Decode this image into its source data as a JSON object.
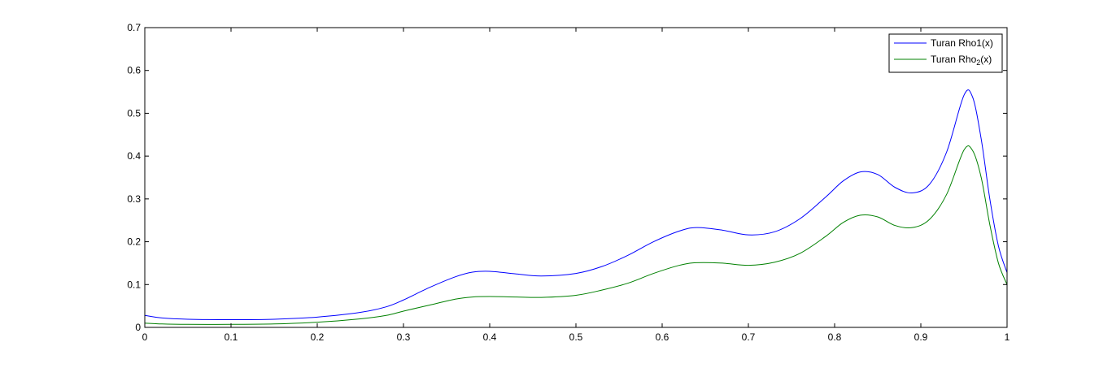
{
  "chart_data": {
    "type": "line",
    "title": "",
    "xlabel": "",
    "ylabel": "",
    "xlim": [
      0,
      1
    ],
    "ylim": [
      0,
      0.7
    ],
    "xticks": [
      0,
      0.1,
      0.2,
      0.3,
      0.4,
      0.5,
      0.6,
      0.7,
      0.8,
      0.9,
      1
    ],
    "xtick_labels": [
      "0",
      "0.1",
      "0.2",
      "0.3",
      "0.4",
      "0.5",
      "0.6",
      "0.7",
      "0.8",
      "0.9",
      "1"
    ],
    "yticks": [
      0,
      0.1,
      0.2,
      0.3,
      0.4,
      0.5,
      0.6,
      0.7
    ],
    "ytick_labels": [
      "0",
      "0.1",
      "0.2",
      "0.3",
      "0.4",
      "0.5",
      "0.6",
      "0.7"
    ],
    "grid": false,
    "legend_position": "top-right",
    "legend": {
      "rho1": "Turan Rho1(x)",
      "rho2_prefix": "Turan Rho",
      "rho2_sub": "2",
      "rho2_suffix": "(x)"
    },
    "series": [
      {
        "name": "Turan Rho1(x)",
        "color": "#0000ff",
        "points": [
          [
            0.0,
            0.028
          ],
          [
            0.02,
            0.022
          ],
          [
            0.05,
            0.019
          ],
          [
            0.1,
            0.018
          ],
          [
            0.15,
            0.019
          ],
          [
            0.2,
            0.024
          ],
          [
            0.25,
            0.035
          ],
          [
            0.28,
            0.048
          ],
          [
            0.3,
            0.064
          ],
          [
            0.33,
            0.093
          ],
          [
            0.36,
            0.118
          ],
          [
            0.38,
            0.129
          ],
          [
            0.4,
            0.131
          ],
          [
            0.43,
            0.125
          ],
          [
            0.46,
            0.12
          ],
          [
            0.5,
            0.126
          ],
          [
            0.53,
            0.142
          ],
          [
            0.56,
            0.168
          ],
          [
            0.59,
            0.2
          ],
          [
            0.62,
            0.225
          ],
          [
            0.64,
            0.233
          ],
          [
            0.67,
            0.227
          ],
          [
            0.7,
            0.216
          ],
          [
            0.73,
            0.223
          ],
          [
            0.76,
            0.254
          ],
          [
            0.79,
            0.305
          ],
          [
            0.81,
            0.342
          ],
          [
            0.83,
            0.363
          ],
          [
            0.85,
            0.357
          ],
          [
            0.87,
            0.327
          ],
          [
            0.89,
            0.314
          ],
          [
            0.91,
            0.334
          ],
          [
            0.93,
            0.41
          ],
          [
            0.95,
            0.542
          ],
          [
            0.96,
            0.538
          ],
          [
            0.97,
            0.44
          ],
          [
            0.98,
            0.3
          ],
          [
            0.99,
            0.19
          ],
          [
            1.0,
            0.128
          ]
        ]
      },
      {
        "name": "Turan Rho2(x)",
        "color": "#008000",
        "points": [
          [
            0.0,
            0.01
          ],
          [
            0.02,
            0.008
          ],
          [
            0.05,
            0.007
          ],
          [
            0.1,
            0.007
          ],
          [
            0.15,
            0.008
          ],
          [
            0.2,
            0.012
          ],
          [
            0.25,
            0.02
          ],
          [
            0.28,
            0.028
          ],
          [
            0.3,
            0.038
          ],
          [
            0.33,
            0.052
          ],
          [
            0.36,
            0.066
          ],
          [
            0.38,
            0.071
          ],
          [
            0.4,
            0.072
          ],
          [
            0.43,
            0.071
          ],
          [
            0.46,
            0.07
          ],
          [
            0.5,
            0.075
          ],
          [
            0.53,
            0.087
          ],
          [
            0.56,
            0.103
          ],
          [
            0.59,
            0.126
          ],
          [
            0.62,
            0.145
          ],
          [
            0.64,
            0.151
          ],
          [
            0.67,
            0.15
          ],
          [
            0.7,
            0.145
          ],
          [
            0.73,
            0.152
          ],
          [
            0.76,
            0.173
          ],
          [
            0.79,
            0.213
          ],
          [
            0.81,
            0.245
          ],
          [
            0.83,
            0.262
          ],
          [
            0.85,
            0.258
          ],
          [
            0.87,
            0.238
          ],
          [
            0.89,
            0.233
          ],
          [
            0.91,
            0.252
          ],
          [
            0.93,
            0.311
          ],
          [
            0.95,
            0.414
          ],
          [
            0.96,
            0.413
          ],
          [
            0.97,
            0.35
          ],
          [
            0.98,
            0.24
          ],
          [
            0.99,
            0.15
          ],
          [
            1.0,
            0.1
          ]
        ]
      }
    ]
  }
}
